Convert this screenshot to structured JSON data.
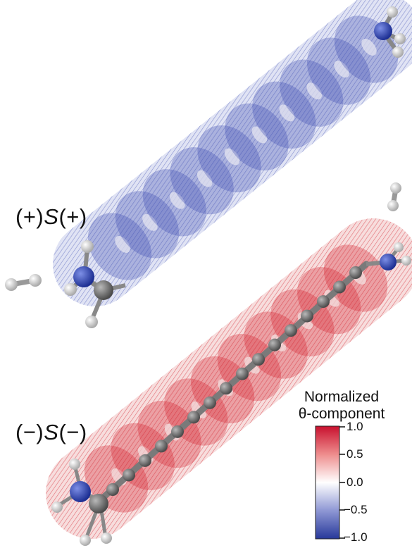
{
  "labels": {
    "top_molecule": {
      "prefix": "(+)",
      "letter": "S",
      "suffix": "(+)"
    },
    "bottom_molecule": {
      "prefix": "(−)",
      "letter": "S",
      "suffix": "(−)"
    }
  },
  "legend": {
    "title_line1": "Normalized",
    "title_line2": "θ-component",
    "ticks": [
      "1.0",
      "0.5",
      "0.0",
      "−0.5",
      "−1.0"
    ],
    "colors": {
      "max": "#d3202a",
      "mid": "#ffffff",
      "min": "#2a3a9a"
    }
  },
  "colors": {
    "carbon": "#6f6f6f",
    "nitrogen": "#2e45b8",
    "hydrogen": "#e6e6e6",
    "field_positive": "#d3202a",
    "field_negative": "#3a4ab0"
  }
}
